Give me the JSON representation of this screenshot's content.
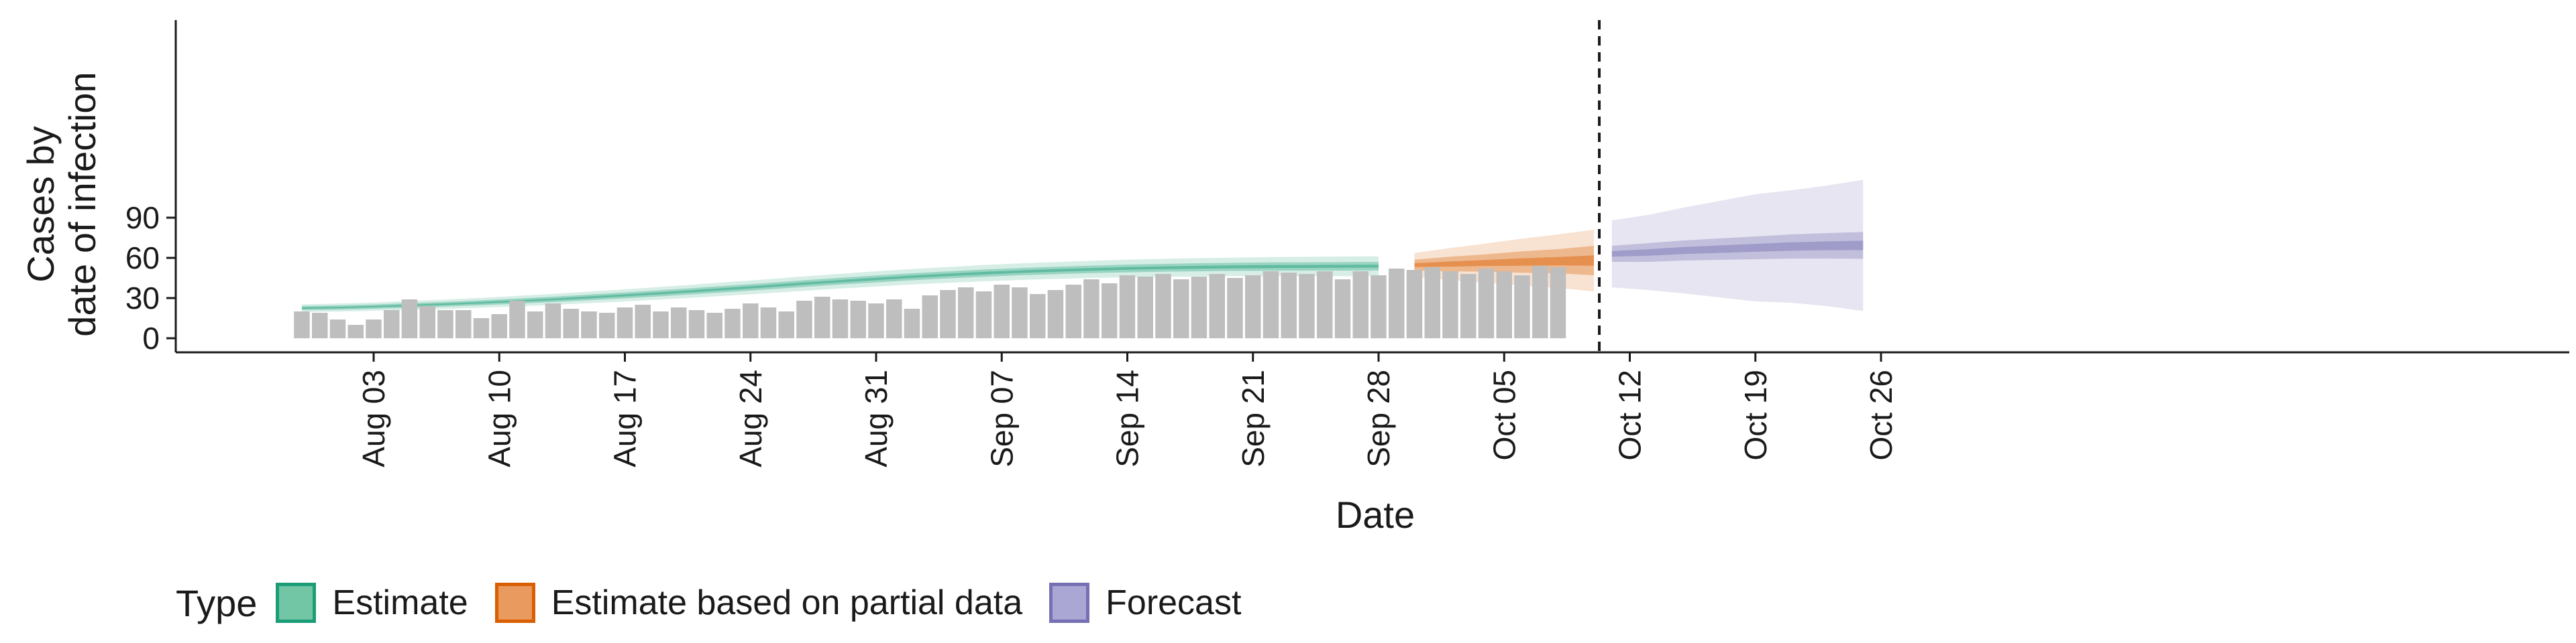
{
  "chart_data": {
    "type": "bar",
    "xlabel": "Date",
    "ylabel": [
      "Cases by",
      "date of infection"
    ],
    "ylim": [
      -6,
      118
    ],
    "yticks": [
      0,
      30,
      60,
      90
    ],
    "xticks": [
      "Aug 03",
      "Aug 10",
      "Aug 17",
      "Aug 24",
      "Aug 31",
      "Sep 07",
      "Sep 14",
      "Sep 21",
      "Sep 28",
      "Oct 05",
      "Oct 12",
      "Oct 19",
      "Oct 26"
    ],
    "x_start_date": "Jul 30",
    "report_date": "Oct 10",
    "grid": false,
    "colors": {
      "bar": "#bebebe",
      "estimate": "#1b9e77",
      "partial": "#d95f02",
      "forecast": "#7570b3"
    },
    "bars": [
      20,
      19,
      14,
      10,
      14,
      21,
      29,
      24,
      21,
      21,
      15,
      18,
      28,
      20,
      26,
      22,
      20,
      19,
      23,
      25,
      20,
      23,
      21,
      19,
      22,
      26,
      23,
      20,
      28,
      31,
      29,
      28,
      26,
      29,
      22,
      32,
      36,
      38,
      35,
      40,
      38,
      33,
      36,
      40,
      44,
      41,
      47,
      46,
      48,
      44,
      46,
      48,
      45,
      47,
      50,
      49,
      48,
      50,
      44,
      50,
      47,
      52,
      51,
      53,
      50,
      48,
      52,
      50,
      47,
      54,
      53
    ],
    "bands": {
      "estimate": {
        "day_start": 0,
        "day_end": 60,
        "step": 2,
        "median": [
          22.5,
          22.9,
          23.6,
          24.5,
          25.4,
          26.5,
          27.7,
          29.0,
          30.5,
          32.0,
          33.6,
          35.3,
          37.1,
          38.9,
          40.8,
          42.6,
          44.3,
          45.9,
          47.3,
          48.6,
          49.7,
          50.6,
          51.4,
          52.1,
          52.6,
          53.0,
          53.3,
          53.5,
          53.6,
          53.7,
          53.8
        ],
        "inner": [
          1.5,
          1.6,
          1.6,
          1.7,
          1.7,
          1.8,
          1.9,
          2.0,
          2.1,
          2.2,
          2.3,
          2.3,
          2.4,
          2.4,
          2.5,
          2.5,
          2.6,
          2.6,
          2.6,
          2.7,
          2.7,
          2.8,
          2.8,
          2.9,
          2.9,
          3.0,
          3.0,
          3.1,
          3.1,
          3.2,
          3.2
        ],
        "outer": [
          2.8,
          3.0,
          3.1,
          3.3,
          3.5,
          3.7,
          3.9,
          4.1,
          4.3,
          4.5,
          4.7,
          4.9,
          5.1,
          5.2,
          5.4,
          5.5,
          5.7,
          5.8,
          5.9,
          6.1,
          6.2,
          6.3,
          6.4,
          6.6,
          6.7,
          6.8,
          6.9,
          7.1,
          7.2,
          7.3,
          7.4
        ]
      },
      "partial": {
        "day_start": 62,
        "day_end": 72,
        "step": 2,
        "median": [
          54.6,
          55.4,
          56.2,
          56.9,
          57.5,
          58.0
        ],
        "inner": [
          4.0,
          5.5,
          6.5,
          8.0,
          9.0,
          11.0
        ],
        "outer": [
          9.0,
          12.0,
          14.5,
          17.5,
          20.0,
          23.0
        ]
      },
      "forecast": {
        "day_start": 73,
        "day_end": 87,
        "step": 2,
        "median": [
          63.0,
          64.0,
          65.5,
          66.5,
          67.5,
          68.5,
          69.0,
          69.3
        ],
        "inner": [
          6.0,
          7.0,
          7.5,
          8.0,
          8.5,
          9.0,
          9.5,
          10.0
        ],
        "outer": [
          25.0,
          28.0,
          32.0,
          36.0,
          40.0,
          42.0,
          45.0,
          49.0
        ]
      }
    },
    "legend": {
      "title": "Type",
      "items": [
        {
          "label": "Estimate",
          "color": "#1b9e77",
          "fill": "#72c5a5"
        },
        {
          "label": "Estimate based on partial data",
          "color": "#d95f02",
          "fill": "#e99a5e"
        },
        {
          "label": "Forecast",
          "color": "#7570b3",
          "fill": "#aaa7d4"
        }
      ]
    }
  }
}
